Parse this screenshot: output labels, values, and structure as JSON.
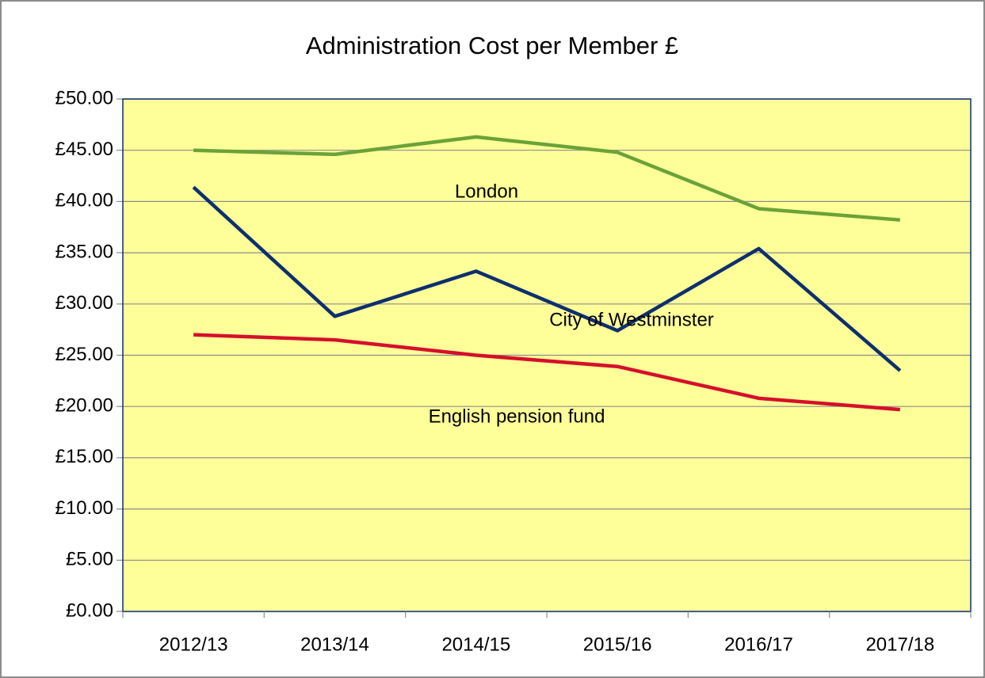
{
  "chart_data": {
    "type": "line",
    "title": "Administration Cost per Member £",
    "categories": [
      "2012/13",
      "2013/14",
      "2014/15",
      "2015/16",
      "2016/17",
      "2017/18"
    ],
    "series": [
      {
        "name": "London",
        "color": "#6aa338",
        "values": [
          45.0,
          44.6,
          46.3,
          44.8,
          39.3,
          38.2
        ]
      },
      {
        "name": "City of Westminster",
        "color": "#0e2f6e",
        "values": [
          41.4,
          28.8,
          33.2,
          27.4,
          35.4,
          23.5
        ]
      },
      {
        "name": "English pension fund",
        "color": "#d5102a",
        "values": [
          27.0,
          26.5,
          25.0,
          23.9,
          20.8,
          19.7
        ]
      }
    ],
    "ylim": [
      0,
      50
    ],
    "yticks": [
      {
        "value": 0,
        "label": "£0.00"
      },
      {
        "value": 5,
        "label": "£5.00"
      },
      {
        "value": 10,
        "label": "£10.00"
      },
      {
        "value": 15,
        "label": "£15.00"
      },
      {
        "value": 20,
        "label": "£20.00"
      },
      {
        "value": 25,
        "label": "£25.00"
      },
      {
        "value": 30,
        "label": "£30.00"
      },
      {
        "value": 35,
        "label": "£35.00"
      },
      {
        "value": 40,
        "label": "£40.00"
      },
      {
        "value": 45,
        "label": "£45.00"
      },
      {
        "value": 50,
        "label": "£50.00"
      }
    ],
    "grid": true,
    "background": "#ffff99"
  }
}
